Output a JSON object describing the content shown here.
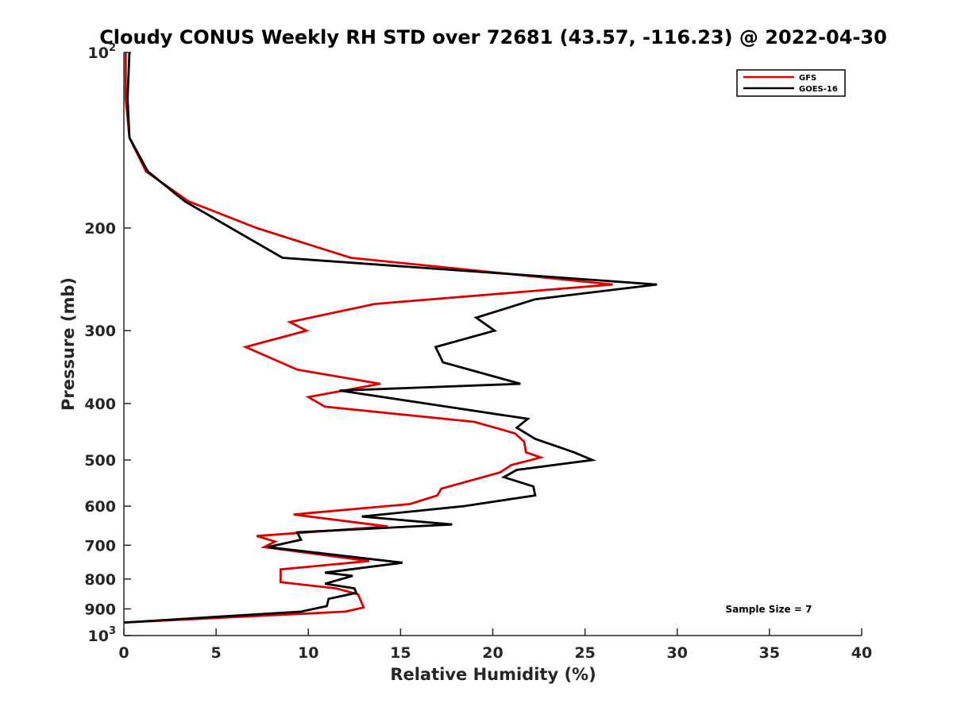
{
  "chart_data": {
    "type": "line",
    "title": "Cloudy CONUS Weekly RH STD over 72681 (43.57, -116.23) @ 2022-04-30",
    "xlabel": "Relative Humidity (%)",
    "ylabel": "Pressure (mb)",
    "xlim": [
      0,
      40
    ],
    "ylim": [
      1000,
      100
    ],
    "yscale": "log",
    "yreversed": true,
    "x_ticks": [
      "0",
      "5",
      "10",
      "15",
      "20",
      "25",
      "30",
      "35",
      "40"
    ],
    "y_ticks": [
      {
        "value": 100,
        "base": "10",
        "sup": "2"
      },
      {
        "value": 200,
        "base": "200",
        "sup": ""
      },
      {
        "value": 300,
        "base": "300",
        "sup": ""
      },
      {
        "value": 400,
        "base": "400",
        "sup": ""
      },
      {
        "value": 500,
        "base": "500",
        "sup": ""
      },
      {
        "value": 600,
        "base": "600",
        "sup": ""
      },
      {
        "value": 700,
        "base": "700",
        "sup": ""
      },
      {
        "value": 800,
        "base": "800",
        "sup": ""
      },
      {
        "value": 900,
        "base": "900",
        "sup": ""
      },
      {
        "value": 1000,
        "base": "10",
        "sup": "3"
      }
    ],
    "grid": false,
    "legend_position": "top-right",
    "annotation": "Sample Size = 7",
    "series": [
      {
        "name": "GFS",
        "color": "#dd0000",
        "points": [
          [
            0.1,
            100
          ],
          [
            0.1,
            120
          ],
          [
            0.3,
            140
          ],
          [
            1.2,
            160
          ],
          [
            3.5,
            180
          ],
          [
            7.2,
            200
          ],
          [
            12.3,
            225
          ],
          [
            26.5,
            250
          ],
          [
            13.6,
            270
          ],
          [
            9.0,
            290
          ],
          [
            9.9,
            300
          ],
          [
            6.6,
            320
          ],
          [
            9.4,
            350
          ],
          [
            13.9,
            370
          ],
          [
            10.0,
            390
          ],
          [
            10.9,
            405
          ],
          [
            19.0,
            430
          ],
          [
            21.2,
            450
          ],
          [
            21.7,
            465
          ],
          [
            21.8,
            485
          ],
          [
            22.6,
            495
          ],
          [
            21.0,
            510
          ],
          [
            20.4,
            525
          ],
          [
            17.2,
            560
          ],
          [
            17.0,
            575
          ],
          [
            15.5,
            595
          ],
          [
            9.2,
            620
          ],
          [
            14.3,
            650
          ],
          [
            7.2,
            675
          ],
          [
            8.2,
            690
          ],
          [
            7.6,
            705
          ],
          [
            13.3,
            745
          ],
          [
            8.5,
            770
          ],
          [
            8.5,
            810
          ],
          [
            11.5,
            830
          ],
          [
            12.7,
            850
          ],
          [
            12.8,
            865
          ],
          [
            13.0,
            895
          ],
          [
            12.0,
            910
          ],
          [
            0.0,
            950
          ]
        ]
      },
      {
        "name": "GOES-16",
        "color": "#000000",
        "points": [
          [
            0.3,
            100
          ],
          [
            0.2,
            120
          ],
          [
            0.3,
            140
          ],
          [
            1.3,
            160
          ],
          [
            3.3,
            180
          ],
          [
            8.6,
            225
          ],
          [
            28.9,
            250
          ],
          [
            22.3,
            265
          ],
          [
            19.1,
            285
          ],
          [
            20.1,
            300
          ],
          [
            16.9,
            320
          ],
          [
            17.3,
            340
          ],
          [
            21.5,
            370
          ],
          [
            11.7,
            380
          ],
          [
            21.9,
            425
          ],
          [
            21.3,
            440
          ],
          [
            22.3,
            460
          ],
          [
            24.4,
            485
          ],
          [
            25.4,
            500
          ],
          [
            21.3,
            520
          ],
          [
            20.6,
            535
          ],
          [
            22.2,
            555
          ],
          [
            22.3,
            575
          ],
          [
            18.4,
            600
          ],
          [
            12.9,
            625
          ],
          [
            17.8,
            645
          ],
          [
            9.4,
            665
          ],
          [
            9.6,
            685
          ],
          [
            7.8,
            705
          ],
          [
            15.1,
            750
          ],
          [
            10.9,
            780
          ],
          [
            12.4,
            790
          ],
          [
            10.9,
            815
          ],
          [
            12.5,
            830
          ],
          [
            12.6,
            845
          ],
          [
            11.1,
            865
          ],
          [
            11.0,
            890
          ],
          [
            9.6,
            910
          ],
          [
            0.0,
            950
          ]
        ]
      }
    ]
  }
}
